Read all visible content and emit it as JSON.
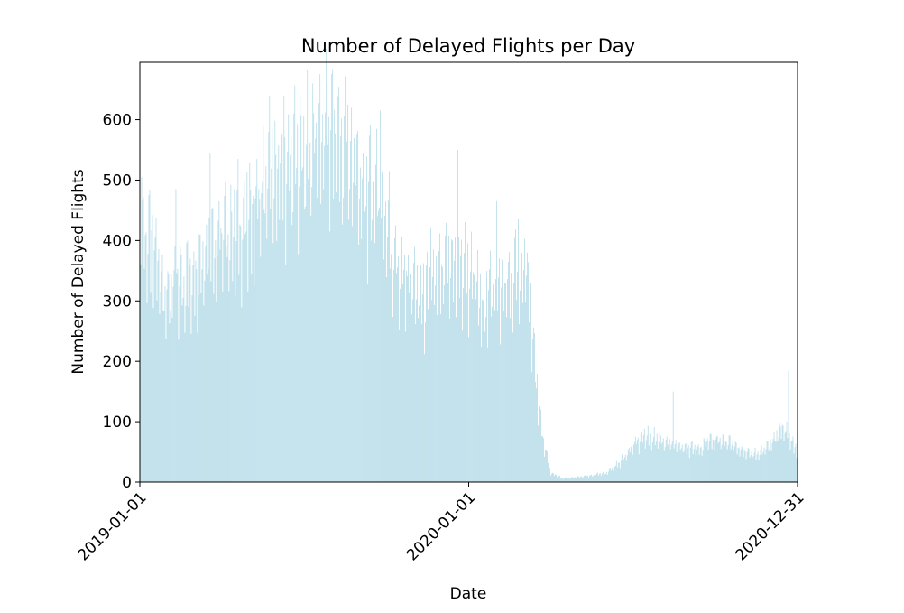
{
  "chart_data": {
    "type": "bar",
    "title": "Number of Delayed Flights per Day",
    "xlabel": "Date",
    "ylabel": "Number of Delayed Flights",
    "x_range": [
      "2019-01-01",
      "2020-12-31"
    ],
    "xticks": [
      "2019-01-01",
      "2020-01-01",
      "2020-12-31"
    ],
    "ylim": [
      0,
      695
    ],
    "yticks": [
      0,
      100,
      200,
      300,
      400,
      500,
      600
    ],
    "grid": false,
    "bar_color": "#add8e6",
    "profile": [
      [
        "2019-01-01",
        420
      ],
      [
        "2019-01-15",
        380
      ],
      [
        "2019-02-01",
        300
      ],
      [
        "2019-02-15",
        330
      ],
      [
        "2019-03-01",
        340
      ],
      [
        "2019-03-15",
        380
      ],
      [
        "2019-04-01",
        400
      ],
      [
        "2019-04-15",
        410
      ],
      [
        "2019-05-01",
        430
      ],
      [
        "2019-05-15",
        470
      ],
      [
        "2019-06-01",
        500
      ],
      [
        "2019-06-15",
        520
      ],
      [
        "2019-07-01",
        530
      ],
      [
        "2019-07-15",
        560
      ],
      [
        "2019-08-01",
        575
      ],
      [
        "2019-08-15",
        545
      ],
      [
        "2019-09-01",
        490
      ],
      [
        "2019-09-15",
        470
      ],
      [
        "2019-10-01",
        440
      ],
      [
        "2019-10-15",
        350
      ],
      [
        "2019-11-01",
        320
      ],
      [
        "2019-11-15",
        300
      ],
      [
        "2019-12-01",
        330
      ],
      [
        "2019-12-15",
        360
      ],
      [
        "2020-01-01",
        340
      ],
      [
        "2020-01-15",
        290
      ],
      [
        "2020-02-01",
        320
      ],
      [
        "2020-02-15",
        330
      ],
      [
        "2020-03-01",
        350
      ],
      [
        "2020-03-08",
        330
      ],
      [
        "2020-03-15",
        180
      ],
      [
        "2020-03-22",
        80
      ],
      [
        "2020-04-01",
        15
      ],
      [
        "2020-04-15",
        6
      ],
      [
        "2020-05-01",
        8
      ],
      [
        "2020-05-15",
        10
      ],
      [
        "2020-06-01",
        15
      ],
      [
        "2020-06-15",
        30
      ],
      [
        "2020-07-01",
        60
      ],
      [
        "2020-07-15",
        75
      ],
      [
        "2020-08-01",
        70
      ],
      [
        "2020-08-15",
        60
      ],
      [
        "2020-09-01",
        55
      ],
      [
        "2020-09-15",
        58
      ],
      [
        "2020-10-01",
        70
      ],
      [
        "2020-10-15",
        65
      ],
      [
        "2020-11-01",
        50
      ],
      [
        "2020-11-15",
        45
      ],
      [
        "2020-12-01",
        60
      ],
      [
        "2020-12-15",
        90
      ],
      [
        "2020-12-31",
        50
      ]
    ],
    "peaks": [
      [
        "2019-01-03",
        505
      ],
      [
        "2019-02-10",
        485
      ],
      [
        "2019-03-20",
        545
      ],
      [
        "2019-04-20",
        535
      ],
      [
        "2019-05-25",
        640
      ],
      [
        "2019-06-10",
        640
      ],
      [
        "2019-07-12",
        660
      ],
      [
        "2019-07-28",
        660
      ],
      [
        "2019-08-20",
        625
      ],
      [
        "2019-09-25",
        615
      ],
      [
        "2019-11-20",
        420
      ],
      [
        "2019-12-20",
        550
      ],
      [
        "2020-02-01",
        465
      ],
      [
        "2020-02-25",
        435
      ],
      [
        "2020-03-06",
        380
      ],
      [
        "2020-08-15",
        150
      ],
      [
        "2020-12-21",
        185
      ]
    ]
  }
}
